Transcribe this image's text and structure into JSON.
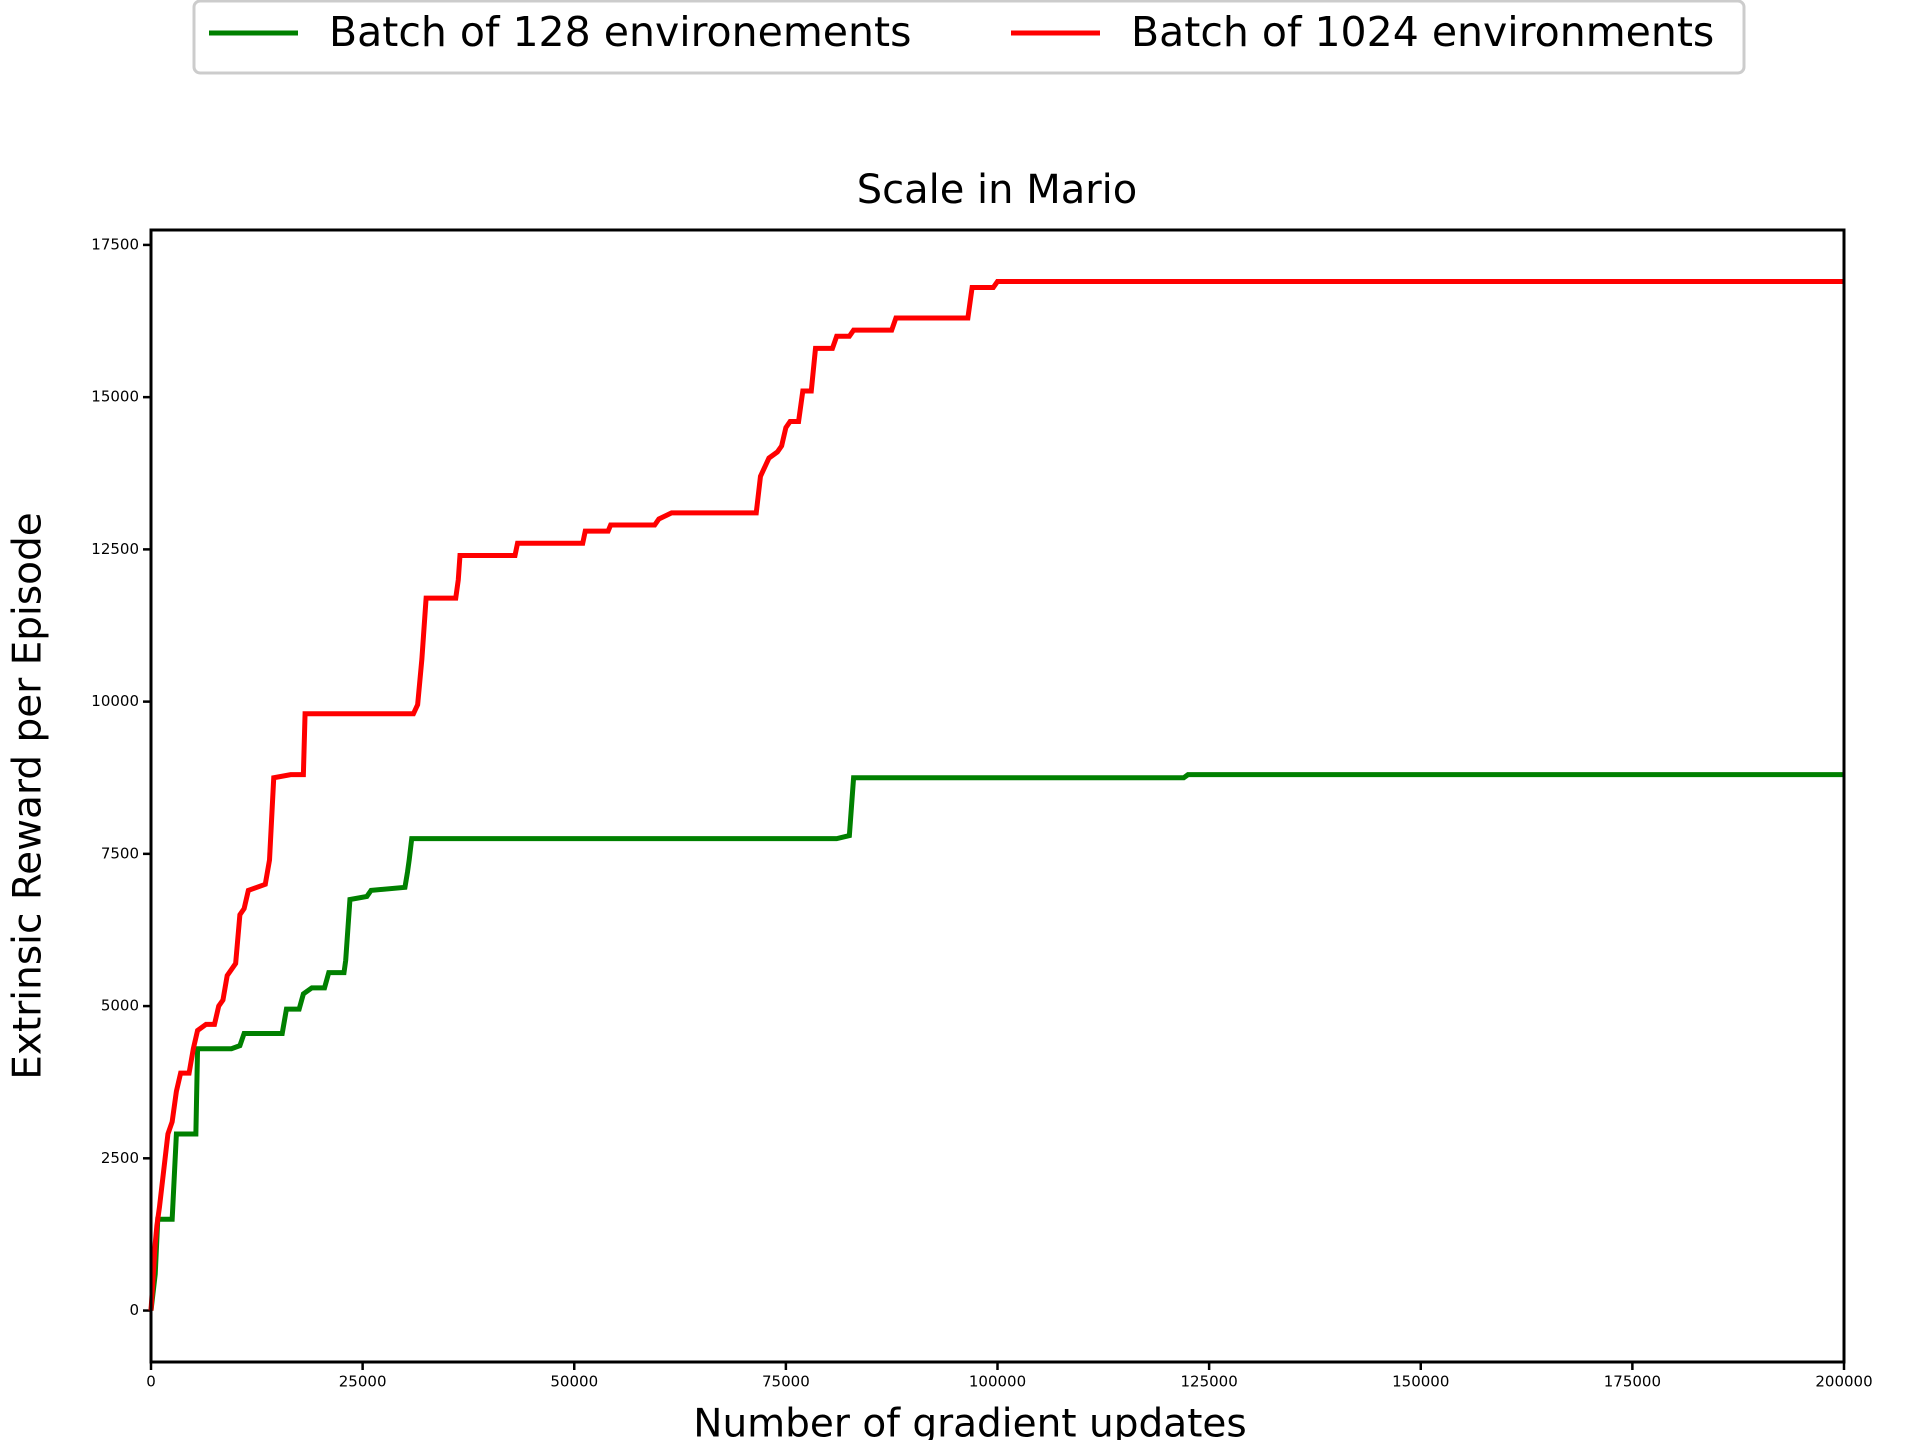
{
  "chart_data": {
    "type": "line",
    "title": "Scale in Mario",
    "x_label": "Number of gradient updates",
    "y_label": "Extrinsic Reward per Episode",
    "xlim": [
      0,
      200000
    ],
    "ylim": [
      -845,
      17745
    ],
    "xticks": [
      0,
      25000,
      50000,
      75000,
      100000,
      125000,
      150000,
      175000,
      200000
    ],
    "yticks": [
      0,
      2500,
      5000,
      7500,
      10000,
      12500,
      15000,
      17500
    ],
    "series": [
      {
        "name": "Batch of 128 environements",
        "color": "#008000",
        "x": [
          0,
          500,
          800,
          2500,
          3000,
          5300,
          5500,
          9500,
          10500,
          11000,
          15500,
          16000,
          17500,
          18000,
          19000,
          20500,
          21000,
          22800,
          23000,
          23500,
          25500,
          26000,
          30000,
          30300,
          30500,
          30800,
          81000,
          82500,
          83000,
          122000,
          122500,
          200000
        ],
        "values": [
          0,
          600,
          1500,
          1500,
          2900,
          2900,
          4300,
          4300,
          4350,
          4550,
          4550,
          4950,
          4950,
          5200,
          5300,
          5300,
          5550,
          5550,
          5750,
          6750,
          6800,
          6900,
          6950,
          7200,
          7400,
          7750,
          7750,
          7800,
          8750,
          8750,
          8800,
          8800
        ]
      },
      {
        "name": "Batch of 1024 environments",
        "color": "#ff0000",
        "x": [
          0,
          500,
          700,
          1000,
          1500,
          2000,
          2500,
          3000,
          3500,
          4500,
          5000,
          5500,
          6500,
          7500,
          8000,
          8500,
          9000,
          10000,
          10500,
          11000,
          11500,
          13500,
          14000,
          14500,
          16500,
          18000,
          18200,
          31000,
          31500,
          32000,
          32500,
          36000,
          36300,
          36500,
          43000,
          43300,
          51000,
          51300,
          54000,
          54300,
          59500,
          60000,
          61500,
          71500,
          72000,
          73000,
          74000,
          74500,
          75000,
          75500,
          76500,
          77000,
          78000,
          78500,
          80500,
          81000,
          82500,
          83000,
          87500,
          88000,
          96500,
          97000,
          99500,
          100000,
          200000
        ],
        "values": [
          0,
          1100,
          1400,
          1700,
          2300,
          2900,
          3100,
          3600,
          3900,
          3900,
          4300,
          4600,
          4700,
          4700,
          5000,
          5100,
          5500,
          5700,
          6500,
          6600,
          6900,
          7000,
          7400,
          8750,
          8800,
          8800,
          9800,
          9800,
          9950,
          10700,
          11700,
          11700,
          12000,
          12400,
          12400,
          12600,
          12600,
          12800,
          12800,
          12900,
          12900,
          13000,
          13100,
          13100,
          13700,
          14000,
          14100,
          14200,
          14500,
          14600,
          14600,
          15100,
          15100,
          15800,
          15800,
          16000,
          16000,
          16100,
          16100,
          16300,
          16300,
          16800,
          16800,
          16900,
          16900
        ]
      }
    ]
  }
}
